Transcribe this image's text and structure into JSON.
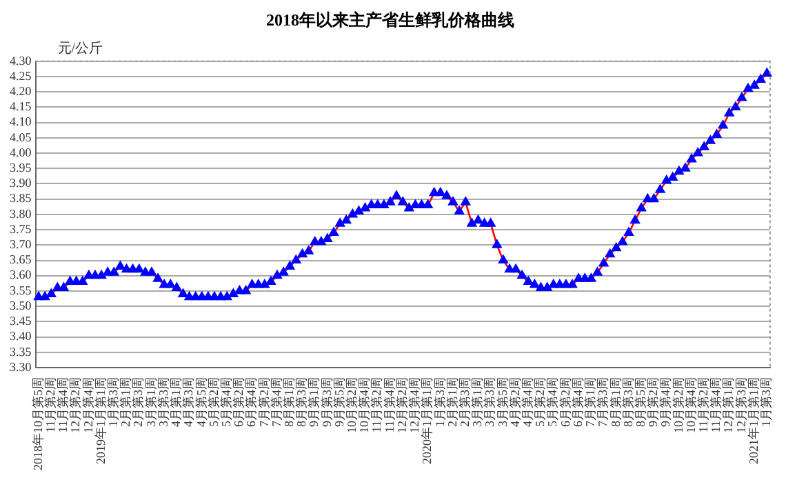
{
  "chart_data": {
    "type": "line",
    "title": "2018年以来主产省生鲜乳价格曲线",
    "ylabel": "元/公斤",
    "categories": [
      "2018年10月第5周",
      null,
      "11月第2周",
      null,
      "11月第4周",
      null,
      "12月第2周",
      null,
      "12月第4周",
      null,
      "2019年1月第1周",
      null,
      "1月第3周",
      null,
      "2月第1周",
      null,
      "2月第3周",
      null,
      "3月第1周",
      null,
      "3月第3周",
      null,
      "4月第1周",
      null,
      "4月第3周",
      null,
      "4月第5周",
      null,
      "5月第2周",
      null,
      "5月第4周",
      null,
      "6月第2周",
      null,
      "6月第4周",
      null,
      "7月第2周",
      null,
      "7月第4周",
      null,
      "8月第1周",
      null,
      "8月第3周",
      null,
      "9月第1周",
      null,
      "9月第3周",
      null,
      "9月第5周",
      null,
      "10月第2周",
      null,
      "10月第4周",
      null,
      "11月第2周",
      null,
      "11月第4周",
      null,
      "12月第2周",
      null,
      "12月第4周",
      null,
      "2020年1月第1周",
      null,
      "1月第3周",
      null,
      "2月第1周",
      null,
      "2月第3周",
      null,
      "3月第1周",
      null,
      "3月第3周",
      null,
      "3月第5周",
      null,
      "4月第2周",
      null,
      "4月第4周",
      null,
      "5月第2周",
      null,
      "5月第4周",
      null,
      "6月第2周",
      null,
      "6月第4周",
      null,
      "7月第1周",
      null,
      "7月第3周",
      null,
      "8月第1周",
      null,
      "8月第3周",
      null,
      "8月第5周",
      null,
      "9月第2周",
      null,
      "9月第4周",
      null,
      "10月第2周",
      null,
      "10月第4周",
      null,
      "11月第2周",
      null,
      "11月第4周",
      null,
      "12月第1周",
      null,
      "12月第3周",
      null,
      "2021年1月第1周",
      null,
      "1月第3周"
    ],
    "series": [
      {
        "color": "#ff0000",
        "colors": [
          "#0000ff",
          "#0000ff",
          "#0000ff",
          "#0000ff",
          "#0000ff",
          "#0000ff",
          "#0000ff",
          "#0000ff",
          "#0000ff",
          "#0000ff",
          "#0000ff",
          "#0000ff",
          "#0000ff",
          "#0000ff",
          "#0000ff",
          "#0000ff",
          "#0000ff",
          "#0000ff",
          "#0000ff",
          "#0000ff",
          "#0000ff",
          "#0000ff",
          "#0000ff",
          "#0000ff",
          "#0000ff",
          "#0000ff",
          "#0000ff",
          "#0000ff",
          "#0000ff",
          "#0000ff",
          "#0000ff",
          "#0000ff",
          "#0000ff",
          "#0000ff",
          "#0000ff",
          "#0000ff",
          "#0000ff",
          "#0000ff",
          "#0000ff",
          "#0000ff",
          "#0000ff",
          "#0000ff",
          "#0000ff",
          "#0000ff",
          "#0000ff",
          "#0000ff",
          "#0000ff",
          "#0000ff",
          "#0000ff",
          "#0000ff",
          "#0000ff",
          "#0000ff",
          "#0000ff",
          "#0000ff",
          "#0000ff",
          "#0000ff",
          "#0000ff",
          "#0000ff",
          "#0000ff",
          "#0000ff",
          "#0000ff",
          "#0000ff",
          "#0000ff",
          "#0000ff",
          "#0000ff",
          "#0000ff",
          "#0000ff",
          "#0000ff",
          "#0000ff",
          "#0000ff",
          "#0000ff",
          "#0000ff",
          "#0000ff",
          "#0000ff",
          "#0000ff",
          "#0000ff",
          "#0000ff",
          "#0000ff",
          "#0000ff",
          "#0000ff",
          "#0000ff",
          "#0000ff",
          "#0000ff",
          "#0000ff",
          "#0000ff",
          "#0000ff",
          "#0000ff",
          "#0000ff",
          "#0000ff",
          "#0000ff",
          "#0000ff",
          "#0000ff",
          "#0000ff",
          "#0000ff",
          "#0000ff",
          "#0000ff",
          "#0000ff",
          "#0000ff",
          "#0000ff",
          "#0000ff",
          "#0000ff",
          "#0000ff",
          "#0000ff",
          "#0000ff",
          "#0000ff",
          "#0000ff",
          "#0000ff",
          "#0000ff",
          "#0000ff",
          "#0000ff",
          "#0000ff",
          "#0000ff",
          "#0000ff",
          "#0000ff",
          "#0000ff",
          "#0000ff",
          "#0000ff"
        ],
        "values": [
          3.53,
          3.53,
          3.54,
          3.56,
          3.56,
          3.58,
          3.58,
          3.58,
          3.6,
          3.6,
          3.6,
          3.61,
          3.61,
          3.63,
          3.62,
          3.62,
          3.62,
          3.61,
          3.61,
          3.59,
          3.57,
          3.57,
          3.56,
          3.54,
          3.53,
          3.53,
          3.53,
          3.53,
          3.53,
          3.53,
          3.53,
          3.54,
          3.55,
          3.55,
          3.57,
          3.57,
          3.57,
          3.58,
          3.6,
          3.61,
          3.63,
          3.65,
          3.67,
          3.68,
          3.71,
          3.71,
          3.72,
          3.74,
          3.77,
          3.78,
          3.8,
          3.81,
          3.82,
          3.83,
          3.83,
          3.83,
          3.84,
          3.86,
          3.84,
          3.82,
          3.83,
          3.83,
          3.83,
          3.87,
          3.87,
          3.86,
          3.84,
          3.81,
          3.84,
          3.77,
          3.78,
          3.77,
          3.77,
          3.7,
          3.65,
          3.62,
          3.62,
          3.6,
          3.58,
          3.57,
          3.56,
          3.56,
          3.57,
          3.57,
          3.57,
          3.57,
          3.59,
          3.59,
          3.59,
          3.61,
          3.64,
          3.67,
          3.69,
          3.71,
          3.74,
          3.78,
          3.82,
          3.85,
          3.85,
          3.88,
          3.91,
          3.92,
          3.94,
          3.95,
          3.98,
          4.0,
          4.02,
          4.04,
          4.06,
          4.09,
          4.13,
          4.15,
          4.18,
          4.21,
          4.22,
          4.24,
          4.26
        ]
      }
    ],
    "ylim": [
      3.3,
      4.3
    ],
    "yticks": [
      {
        "value": 3.3,
        "label": "3.30"
      },
      {
        "value": 3.35,
        "label": "3.35"
      },
      {
        "value": 3.4,
        "label": "3.40"
      },
      {
        "value": 3.45,
        "label": "3.45"
      },
      {
        "value": 3.5,
        "label": "3.50"
      },
      {
        "value": 3.55,
        "label": "3.55"
      },
      {
        "value": 3.6,
        "label": "3.60"
      },
      {
        "value": 3.65,
        "label": "3.65"
      },
      {
        "value": 3.7,
        "label": "3.70"
      },
      {
        "value": 3.75,
        "label": "3.75"
      },
      {
        "value": 3.8,
        "label": "3.80"
      },
      {
        "value": 3.85,
        "label": "3.85"
      },
      {
        "value": 3.9,
        "label": "3.90"
      },
      {
        "value": 3.95,
        "label": "3.95"
      },
      {
        "value": 4.0,
        "label": "4.00"
      },
      {
        "value": 4.05,
        "label": "4.05"
      },
      {
        "value": 4.1,
        "label": "4.10"
      },
      {
        "value": 4.15,
        "label": "4.15"
      },
      {
        "value": 4.2,
        "label": "4.20"
      },
      {
        "value": 4.25,
        "label": "4.25"
      },
      {
        "value": 4.3,
        "label": "4.30"
      }
    ],
    "grid": "y",
    "legend": false,
    "marker": "triangle",
    "line_style": "solid"
  }
}
